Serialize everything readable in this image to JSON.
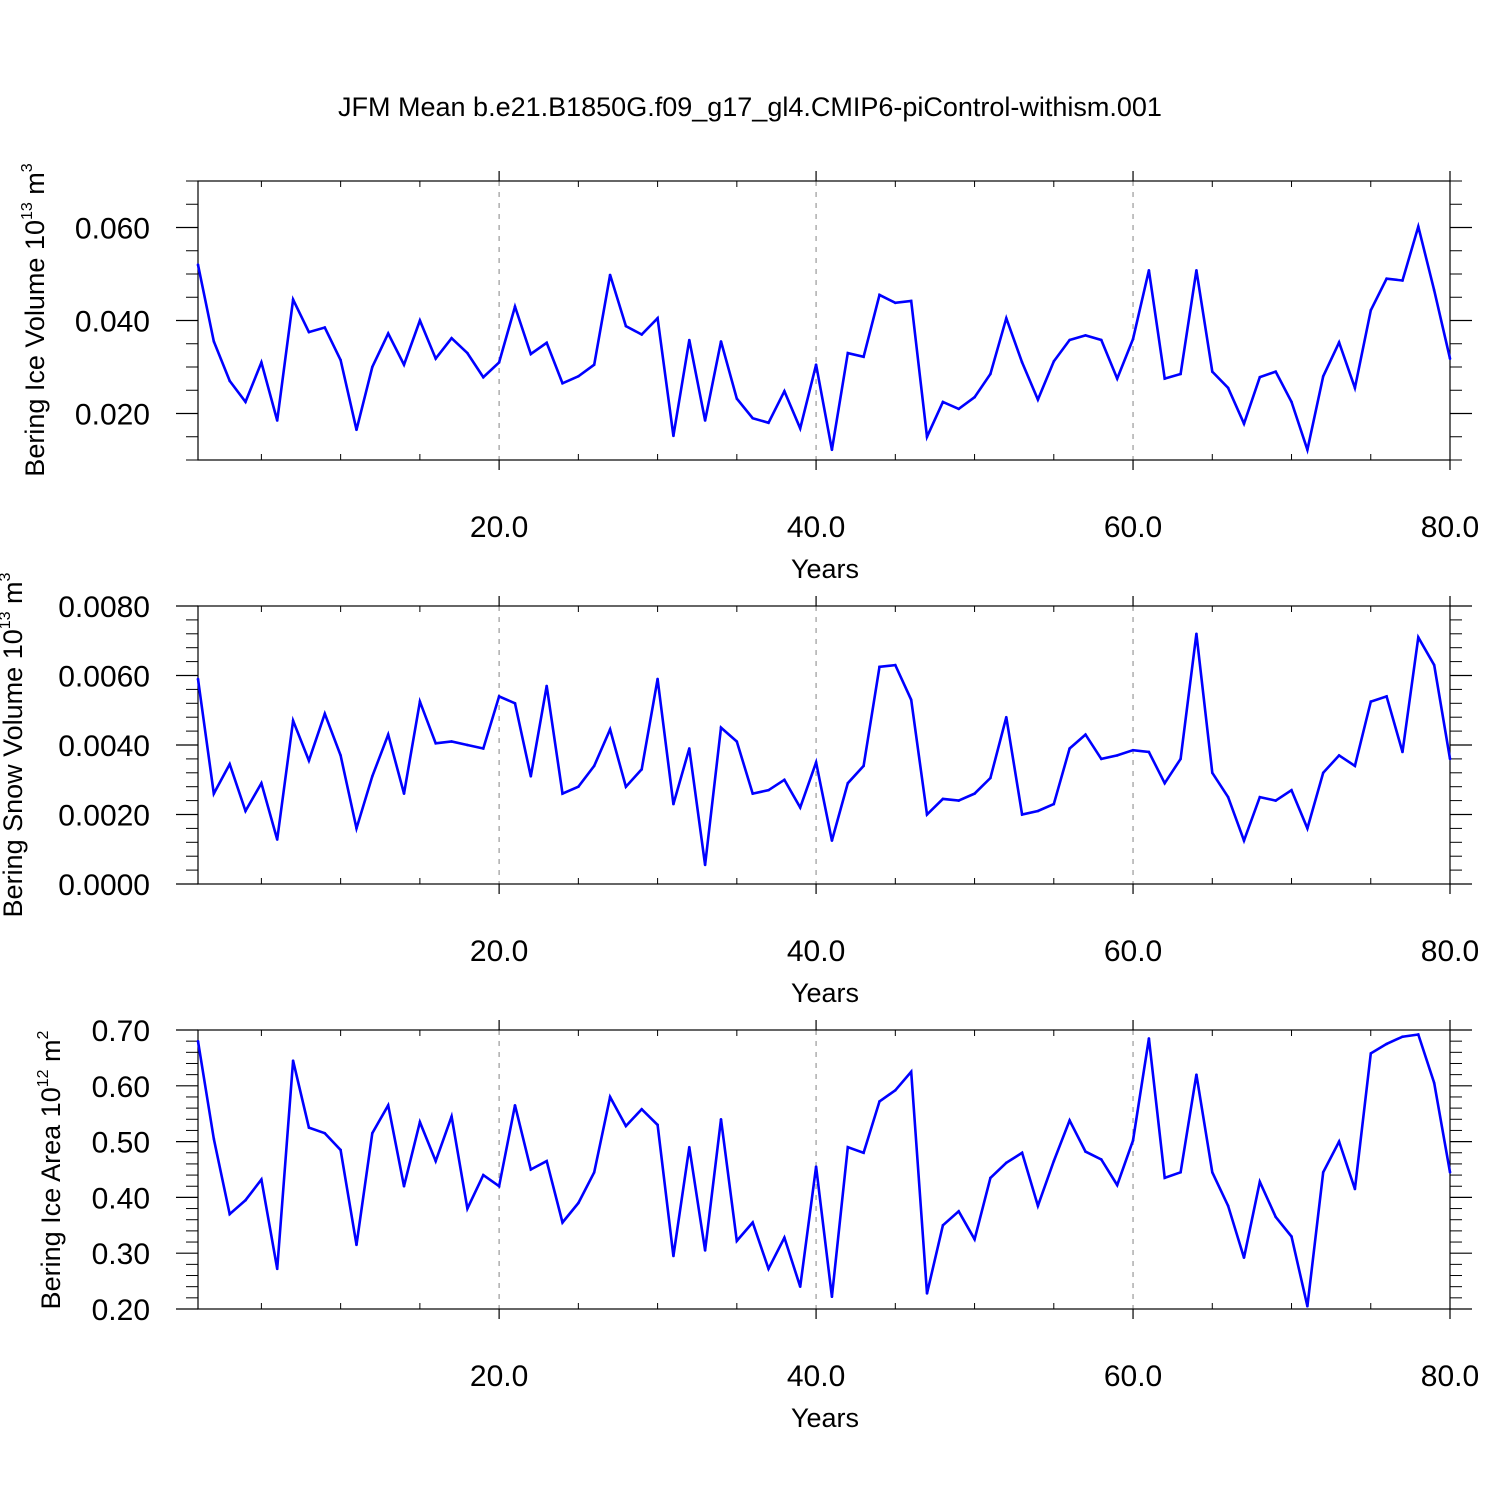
{
  "title": "JFM Mean b.e21.B1850G.f09_g17_gl4.CMIP6-piControl-withism.001",
  "colors": {
    "series": "#0000ff",
    "axis": "#000000",
    "grid": "#999999",
    "background": "#ffffff"
  },
  "chart_data": [
    {
      "type": "line",
      "ylabel_prefix": "Bering Ice Volume 10",
      "ylabel_exp": "13",
      "ylabel_unit": "m",
      "ylabel_unit_exp": "3",
      "xlabel": "Years",
      "xlim": [
        1,
        80
      ],
      "ylim": [
        0.01,
        0.07
      ],
      "x_ticks": [
        20,
        40,
        60,
        80
      ],
      "x_tick_labels": [
        "20.0",
        "40.0",
        "60.0",
        "80.0"
      ],
      "y_ticks": [
        0.02,
        0.04,
        0.06
      ],
      "y_tick_labels": [
        "0.020",
        "0.040",
        "0.060"
      ],
      "y_minor_step": 0.005,
      "grid": "dashed vertical at major x ticks",
      "x": [
        1,
        2,
        3,
        4,
        5,
        6,
        7,
        8,
        9,
        10,
        11,
        12,
        13,
        14,
        15,
        16,
        17,
        18,
        19,
        20,
        21,
        22,
        23,
        24,
        25,
        26,
        27,
        28,
        29,
        30,
        31,
        32,
        33,
        34,
        35,
        36,
        37,
        38,
        39,
        40,
        41,
        42,
        43,
        44,
        45,
        46,
        47,
        48,
        49,
        50,
        51,
        52,
        53,
        54,
        55,
        56,
        57,
        58,
        59,
        60,
        61,
        62,
        63,
        64,
        65,
        66,
        67,
        68,
        69,
        70,
        71,
        72,
        73,
        74,
        75,
        76,
        77,
        78,
        79,
        80
      ],
      "values": [
        0.052,
        0.0355,
        0.027,
        0.0225,
        0.031,
        0.0185,
        0.0445,
        0.0375,
        0.0385,
        0.0315,
        0.0165,
        0.03,
        0.0372,
        0.0305,
        0.04,
        0.0318,
        0.0362,
        0.033,
        0.0278,
        0.031,
        0.043,
        0.0328,
        0.0352,
        0.0265,
        0.028,
        0.0305,
        0.0498,
        0.0388,
        0.037,
        0.0405,
        0.0152,
        0.0358,
        0.0185,
        0.0355,
        0.0232,
        0.019,
        0.018,
        0.0248,
        0.0168,
        0.0305,
        0.0122,
        0.033,
        0.0322,
        0.0455,
        0.0438,
        0.0442,
        0.015,
        0.0225,
        0.021,
        0.0235,
        0.0285,
        0.0405,
        0.031,
        0.023,
        0.0312,
        0.0358,
        0.0368,
        0.0358,
        0.0275,
        0.036,
        0.0508,
        0.0275,
        0.0285,
        0.0508,
        0.029,
        0.0255,
        0.0178,
        0.0278,
        0.029,
        0.0225,
        0.0122,
        0.028,
        0.0353,
        0.0255,
        0.0422,
        0.049,
        0.0486,
        0.0602,
        0.0465,
        0.0318
      ]
    },
    {
      "type": "line",
      "ylabel_prefix": "Bering Snow Volume 10",
      "ylabel_exp": "13",
      "ylabel_unit": "m",
      "ylabel_unit_exp": "3",
      "xlabel": "Years",
      "xlim": [
        1,
        80
      ],
      "ylim": [
        0.0,
        0.008
      ],
      "x_ticks": [
        20,
        40,
        60,
        80
      ],
      "x_tick_labels": [
        "20.0",
        "40.0",
        "60.0",
        "80.0"
      ],
      "y_ticks": [
        0.0,
        0.002,
        0.004,
        0.006,
        0.008
      ],
      "y_tick_labels": [
        "0.0000",
        "0.0020",
        "0.0040",
        "0.0060",
        "0.0080"
      ],
      "y_minor_step": 0.0004,
      "grid": "dashed vertical at major x ticks",
      "x": [
        1,
        2,
        3,
        4,
        5,
        6,
        7,
        8,
        9,
        10,
        11,
        12,
        13,
        14,
        15,
        16,
        17,
        18,
        19,
        20,
        21,
        22,
        23,
        24,
        25,
        26,
        27,
        28,
        29,
        30,
        31,
        32,
        33,
        34,
        35,
        36,
        37,
        38,
        39,
        40,
        41,
        42,
        43,
        44,
        45,
        46,
        47,
        48,
        49,
        50,
        51,
        52,
        53,
        54,
        55,
        56,
        57,
        58,
        59,
        60,
        61,
        62,
        63,
        64,
        65,
        66,
        67,
        68,
        69,
        70,
        71,
        72,
        73,
        74,
        75,
        76,
        77,
        78,
        79,
        80
      ],
      "values": [
        0.0059,
        0.0026,
        0.00345,
        0.0021,
        0.0029,
        0.00128,
        0.0047,
        0.00355,
        0.0049,
        0.0037,
        0.0016,
        0.0031,
        0.0043,
        0.0026,
        0.00525,
        0.00405,
        0.0041,
        0.004,
        0.0039,
        0.0054,
        0.0052,
        0.0031,
        0.0057,
        0.0026,
        0.0028,
        0.0034,
        0.00445,
        0.0028,
        0.0033,
        0.0059,
        0.0023,
        0.0039,
        0.00055,
        0.0045,
        0.0041,
        0.0026,
        0.0027,
        0.003,
        0.0022,
        0.0035,
        0.00125,
        0.0029,
        0.0034,
        0.00625,
        0.0063,
        0.0053,
        0.002,
        0.00245,
        0.0024,
        0.0026,
        0.00305,
        0.0048,
        0.002,
        0.0021,
        0.0023,
        0.0039,
        0.0043,
        0.0036,
        0.0037,
        0.00385,
        0.0038,
        0.0029,
        0.0036,
        0.0072,
        0.0032,
        0.0025,
        0.00125,
        0.0025,
        0.0024,
        0.0027,
        0.0016,
        0.0032,
        0.0037,
        0.0034,
        0.00525,
        0.0054,
        0.0038,
        0.0071,
        0.0063,
        0.0036
      ]
    },
    {
      "type": "line",
      "ylabel_prefix": "Bering Ice Area 10",
      "ylabel_exp": "12",
      "ylabel_unit": "m",
      "ylabel_unit_exp": "2",
      "xlabel": "Years",
      "xlim": [
        1,
        80
      ],
      "ylim": [
        0.2,
        0.7
      ],
      "x_ticks": [
        20,
        40,
        60,
        80
      ],
      "x_tick_labels": [
        "20.0",
        "40.0",
        "60.0",
        "80.0"
      ],
      "y_ticks": [
        0.2,
        0.3,
        0.4,
        0.5,
        0.6,
        0.7
      ],
      "y_tick_labels": [
        "0.20",
        "0.30",
        "0.40",
        "0.50",
        "0.60",
        "0.70"
      ],
      "y_minor_step": 0.02,
      "grid": "dashed vertical at major x ticks",
      "x": [
        1,
        2,
        3,
        4,
        5,
        6,
        7,
        8,
        9,
        10,
        11,
        12,
        13,
        14,
        15,
        16,
        17,
        18,
        19,
        20,
        21,
        22,
        23,
        24,
        25,
        26,
        27,
        28,
        29,
        30,
        31,
        32,
        33,
        34,
        35,
        36,
        37,
        38,
        39,
        40,
        41,
        42,
        43,
        44,
        45,
        46,
        47,
        48,
        49,
        50,
        51,
        52,
        53,
        54,
        55,
        56,
        57,
        58,
        59,
        60,
        61,
        62,
        63,
        64,
        65,
        66,
        67,
        68,
        69,
        70,
        71,
        72,
        73,
        74,
        75,
        76,
        77,
        78,
        79,
        80
      ],
      "values": [
        0.68,
        0.505,
        0.37,
        0.395,
        0.432,
        0.272,
        0.645,
        0.525,
        0.515,
        0.485,
        0.315,
        0.515,
        0.565,
        0.42,
        0.535,
        0.465,
        0.545,
        0.38,
        0.44,
        0.42,
        0.565,
        0.45,
        0.465,
        0.355,
        0.39,
        0.445,
        0.58,
        0.528,
        0.558,
        0.53,
        0.295,
        0.49,
        0.305,
        0.54,
        0.322,
        0.355,
        0.272,
        0.328,
        0.24,
        0.455,
        0.222,
        0.49,
        0.48,
        0.572,
        0.592,
        0.625,
        0.228,
        0.35,
        0.375,
        0.325,
        0.435,
        0.462,
        0.48,
        0.385,
        0.465,
        0.538,
        0.482,
        0.468,
        0.422,
        0.502,
        0.685,
        0.435,
        0.445,
        0.62,
        0.445,
        0.385,
        0.292,
        0.428,
        0.365,
        0.33,
        0.205,
        0.445,
        0.5,
        0.415,
        0.658,
        0.675,
        0.688,
        0.692,
        0.605,
        0.445
      ]
    }
  ]
}
